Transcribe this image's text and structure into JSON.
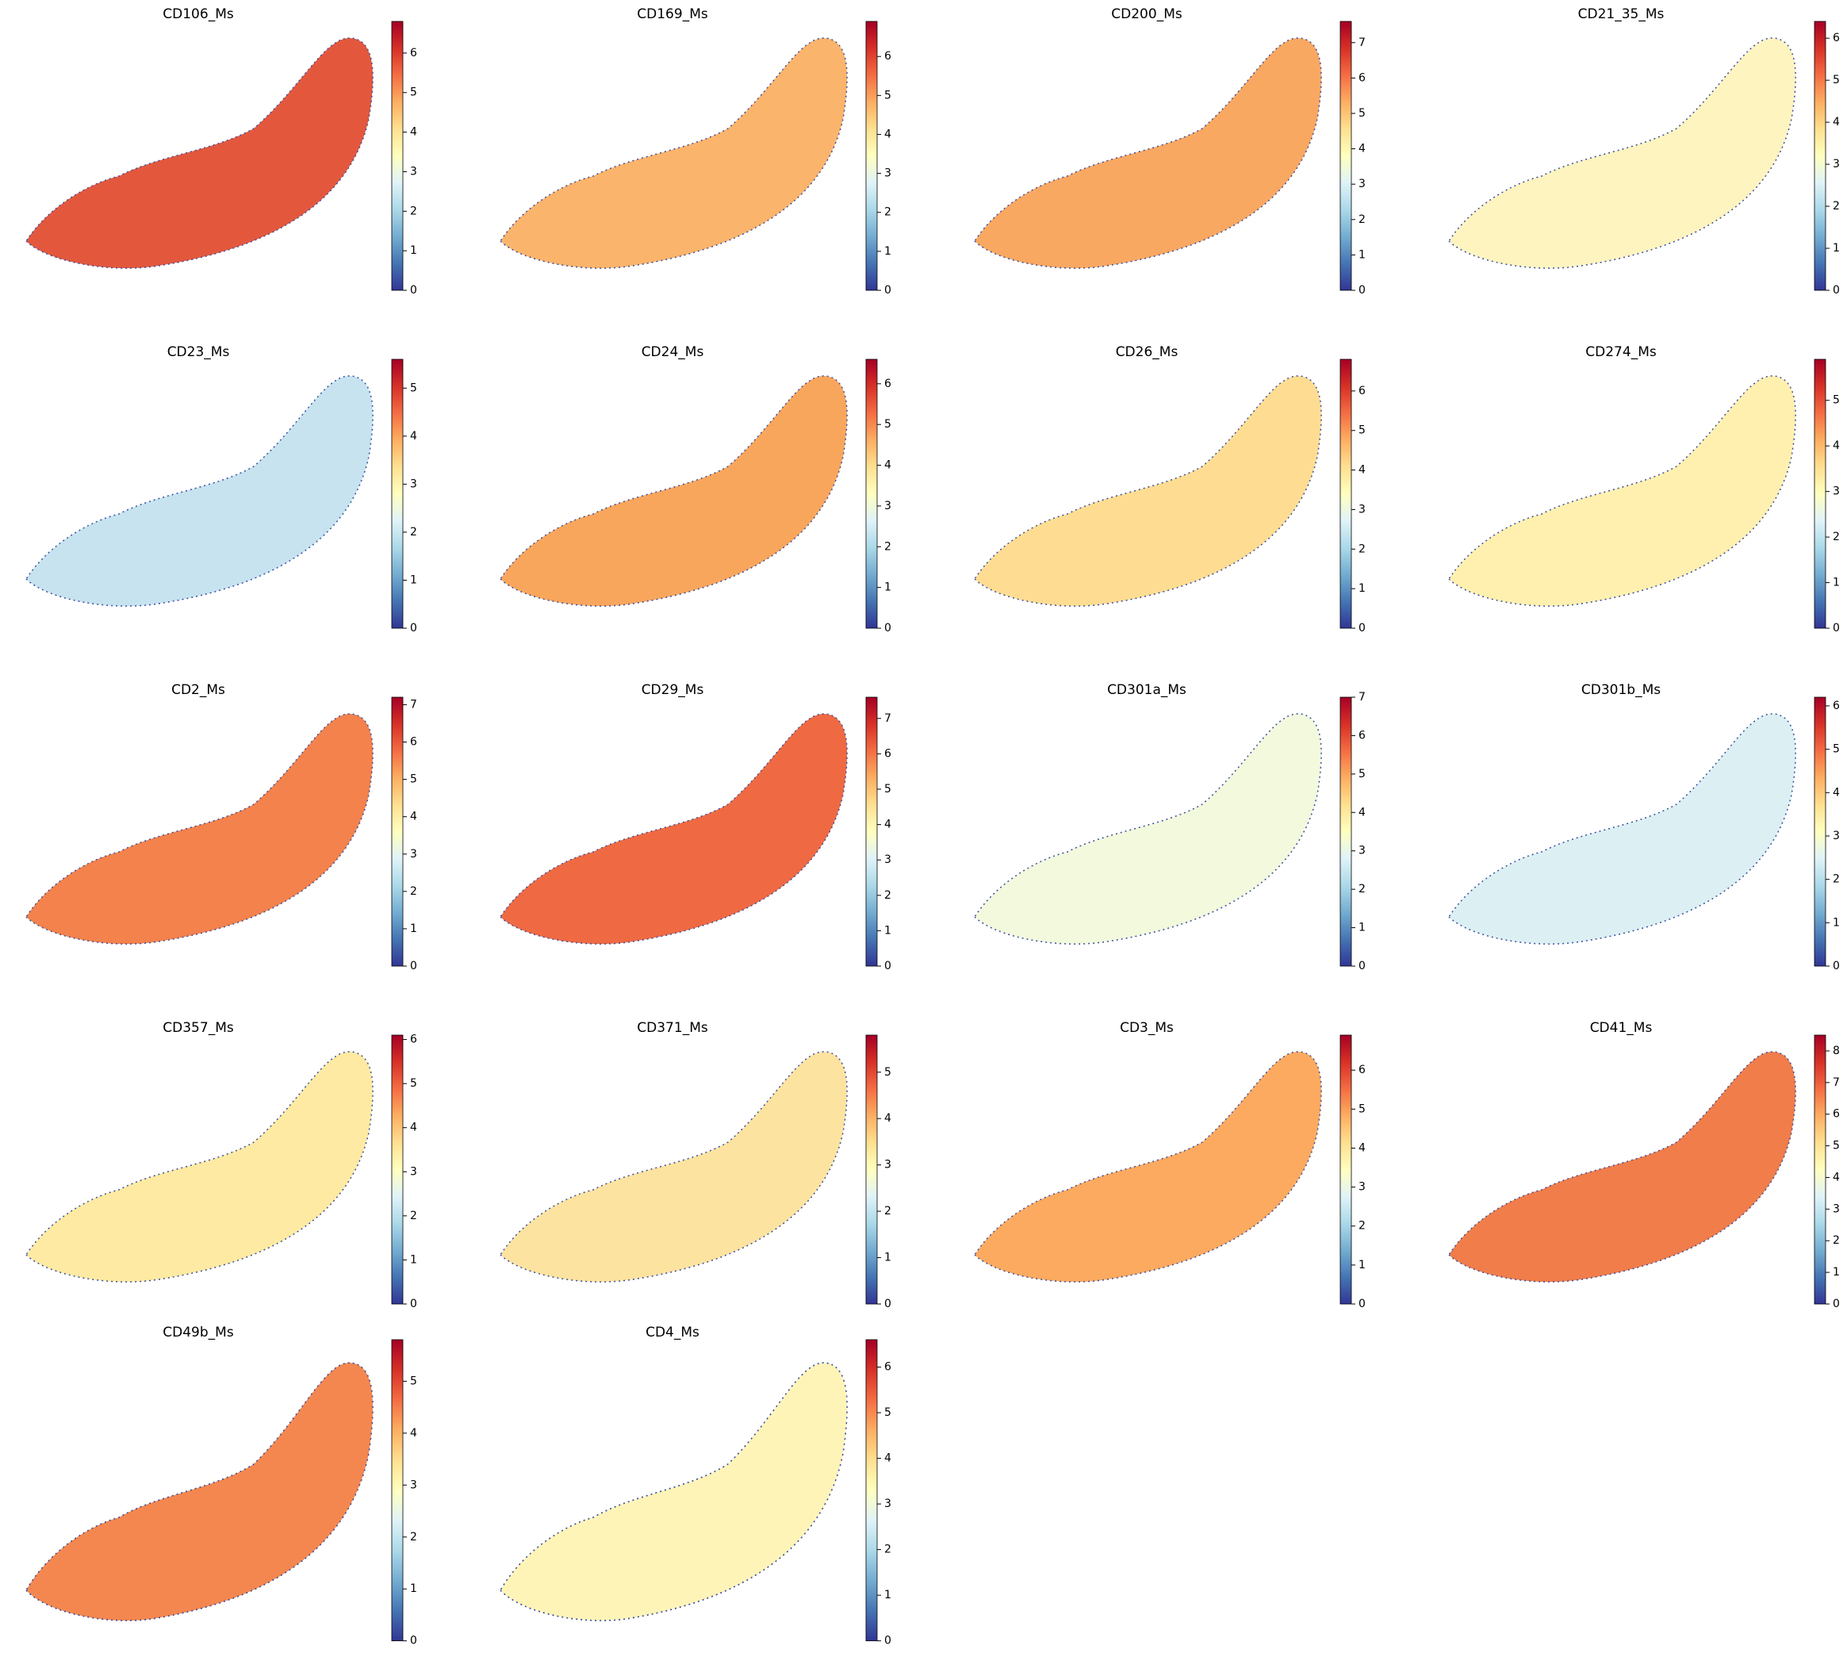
{
  "chart_data": [
    {
      "type": "spatial",
      "title": "CD106_Ms",
      "colormap": "RdYlBu_r",
      "color": "#e3583d",
      "ylim": [
        0,
        6.8
      ],
      "yticks": [
        0,
        1,
        2,
        3,
        4,
        5,
        6
      ]
    },
    {
      "type": "spatial",
      "title": "CD169_Ms",
      "colormap": "RdYlBu_r",
      "color": "#fbb46b",
      "ylim": [
        0,
        6.9
      ],
      "yticks": [
        0,
        1,
        2,
        3,
        4,
        5,
        6
      ]
    },
    {
      "type": "spatial",
      "title": "CD200_Ms",
      "colormap": "RdYlBu_r",
      "color": "#f9a862",
      "ylim": [
        0,
        7.6
      ],
      "yticks": [
        0,
        1,
        2,
        3,
        4,
        5,
        6,
        7
      ]
    },
    {
      "type": "spatial",
      "title": "CD21_35_Ms",
      "colormap": "RdYlBu_r",
      "color": "#fef4c0",
      "ylim": [
        0,
        6.4
      ],
      "yticks": [
        0,
        1,
        2,
        3,
        4,
        5,
        6
      ]
    },
    {
      "type": "spatial",
      "title": "CD23_Ms",
      "colormap": "RdYlBu_r",
      "color": "#c6e3ef",
      "ylim": [
        0,
        5.6
      ],
      "yticks": [
        0,
        1,
        2,
        3,
        4,
        5
      ]
    },
    {
      "type": "spatial",
      "title": "CD24_Ms",
      "colormap": "RdYlBu_r",
      "color": "#f9a65d",
      "ylim": [
        0,
        6.6
      ],
      "yticks": [
        0,
        1,
        2,
        3,
        4,
        5,
        6
      ]
    },
    {
      "type": "spatial",
      "title": "CD26_Ms",
      "colormap": "RdYlBu_r",
      "color": "#fedd93",
      "ylim": [
        0,
        6.8
      ],
      "yticks": [
        0,
        1,
        2,
        3,
        4,
        5,
        6
      ]
    },
    {
      "type": "spatial",
      "title": "CD274_Ms",
      "colormap": "RdYlBu_r",
      "color": "#fff0b0",
      "ylim": [
        0,
        5.9
      ],
      "yticks": [
        0,
        1,
        2,
        3,
        4,
        5
      ]
    },
    {
      "type": "spatial",
      "title": "CD2_Ms",
      "colormap": "RdYlBu_r",
      "color": "#f3824c",
      "ylim": [
        0,
        7.2
      ],
      "yticks": [
        0,
        1,
        2,
        3,
        4,
        5,
        6,
        7
      ]
    },
    {
      "type": "spatial",
      "title": "CD29_Ms",
      "colormap": "RdYlBu_r",
      "color": "#ef6a42",
      "ylim": [
        0,
        7.6
      ],
      "yticks": [
        0,
        1,
        2,
        3,
        4,
        5,
        6,
        7
      ]
    },
    {
      "type": "spatial",
      "title": "CD301a_Ms",
      "colormap": "RdYlBu_r",
      "color": "#f2f9dd",
      "ylim": [
        0,
        7.0
      ],
      "yticks": [
        0,
        1,
        2,
        3,
        4,
        5,
        6,
        7
      ]
    },
    {
      "type": "spatial",
      "title": "CD301b_Ms",
      "colormap": "RdYlBu_r",
      "color": "#dcf0f3",
      "ylim": [
        0,
        6.2
      ],
      "yticks": [
        0,
        1,
        2,
        3,
        4,
        5,
        6
      ]
    },
    {
      "type": "spatial",
      "title": "CD357_Ms",
      "colormap": "RdYlBu_r",
      "color": "#feeaa2",
      "ylim": [
        0,
        6.1
      ],
      "yticks": [
        0,
        1,
        2,
        3,
        4,
        5,
        6
      ]
    },
    {
      "type": "spatial",
      "title": "CD371_Ms",
      "colormap": "RdYlBu_r",
      "color": "#fde3a0",
      "ylim": [
        0,
        5.8
      ],
      "yticks": [
        0,
        1,
        2,
        3,
        4,
        5
      ]
    },
    {
      "type": "spatial",
      "title": "CD3_Ms",
      "colormap": "RdYlBu_r",
      "color": "#fbaa60",
      "ylim": [
        0,
        6.9
      ],
      "yticks": [
        0,
        1,
        2,
        3,
        4,
        5,
        6
      ]
    },
    {
      "type": "spatial",
      "title": "CD41_Ms",
      "colormap": "RdYlBu_r",
      "color": "#f07d4a",
      "ylim": [
        0,
        8.5
      ],
      "yticks": [
        0,
        1,
        2,
        3,
        4,
        5,
        6,
        7,
        8
      ]
    },
    {
      "type": "spatial",
      "title": "CD49b_Ms",
      "colormap": "RdYlBu_r",
      "color": "#f4874f",
      "ylim": [
        0,
        5.8
      ],
      "yticks": [
        0,
        1,
        2,
        3,
        4,
        5
      ]
    },
    {
      "type": "spatial",
      "title": "CD4_Ms",
      "colormap": "RdYlBu_r",
      "color": "#fff4b8",
      "ylim": [
        0,
        6.6
      ],
      "yticks": [
        0,
        1,
        2,
        3,
        4,
        5,
        6
      ]
    }
  ]
}
